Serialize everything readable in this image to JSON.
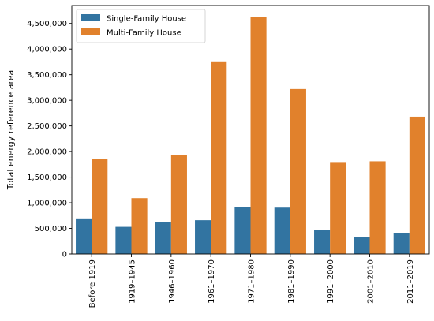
{
  "chart_data": {
    "type": "bar",
    "title": "",
    "xlabel": "",
    "ylabel": "Total energy reference area",
    "categories": [
      "Before 1919",
      "1919–1945",
      "1946–1960",
      "1961–1970",
      "1971–1980",
      "1981–1990",
      "1991–2000",
      "2001–2010",
      "2011–2019"
    ],
    "series": [
      {
        "name": "Single-Family House",
        "color": "#3274a1",
        "values": [
          680000,
          530000,
          630000,
          660000,
          915000,
          905000,
          470000,
          325000,
          410000
        ]
      },
      {
        "name": "Multi-Family House",
        "color": "#e1812c",
        "values": [
          1850000,
          1090000,
          1930000,
          3760000,
          4630000,
          3220000,
          1780000,
          1810000,
          2680000
        ]
      }
    ],
    "ylim": [
      0,
      4850000
    ],
    "yticks": [
      0,
      500000,
      1000000,
      1500000,
      2000000,
      2500000,
      3000000,
      3500000,
      4000000,
      4500000
    ],
    "ytick_labels": [
      "0",
      "500,000",
      "1,000,000",
      "1,500,000",
      "2,000,000",
      "2,500,000",
      "3,000,000",
      "3,500,000",
      "4,000,000",
      "4,500,000"
    ],
    "grid": false,
    "legend_position": "top-left"
  }
}
